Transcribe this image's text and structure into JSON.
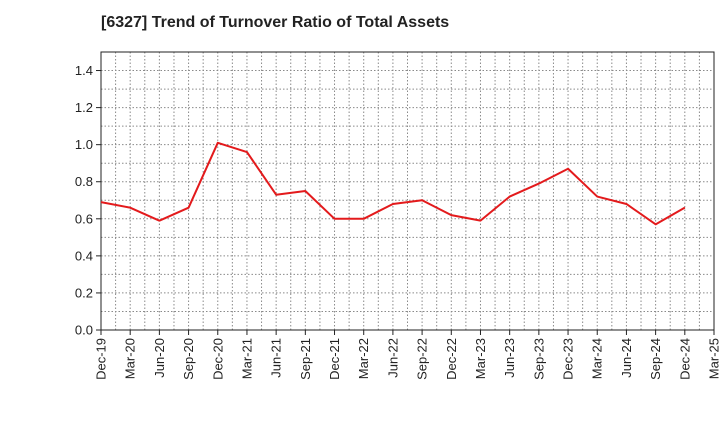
{
  "chart_data": {
    "type": "line",
    "title": "[6327]  Trend of Turnover Ratio of Total Assets",
    "xlabel": "",
    "ylabel": "",
    "x_ticks": [
      "Dec-19",
      "Mar-20",
      "Jun-20",
      "Sep-20",
      "Dec-20",
      "Mar-21",
      "Jun-21",
      "Sep-21",
      "Dec-21",
      "Mar-22",
      "Jun-22",
      "Sep-22",
      "Dec-22",
      "Mar-23",
      "Jun-23",
      "Sep-23",
      "Dec-23",
      "Mar-24",
      "Jun-24",
      "Sep-24",
      "Dec-24",
      "Mar-25"
    ],
    "categories": [
      "Dec-19",
      "Mar-20",
      "Jun-20",
      "Sep-20",
      "Dec-20",
      "Mar-21",
      "Jun-21",
      "Sep-21",
      "Dec-21",
      "Mar-22",
      "Jun-22",
      "Sep-22",
      "Dec-22",
      "Mar-23",
      "Jun-23",
      "Sep-23",
      "Dec-23",
      "Mar-24",
      "Jun-24",
      "Sep-24",
      "Dec-24"
    ],
    "series": [
      {
        "name": "",
        "color": "#e31a1c",
        "values": [
          0.69,
          0.66,
          0.59,
          0.66,
          1.01,
          0.96,
          0.73,
          0.75,
          0.6,
          0.6,
          0.68,
          0.7,
          0.62,
          0.59,
          0.72,
          0.79,
          0.87,
          0.72,
          0.68,
          0.57,
          0.66
        ]
      }
    ],
    "ylim": [
      0,
      1.5
    ],
    "y_ticks": [
      0.0,
      0.2,
      0.4,
      0.6,
      0.8,
      1.0,
      1.2,
      1.4
    ],
    "grid": true,
    "legend": "none"
  }
}
